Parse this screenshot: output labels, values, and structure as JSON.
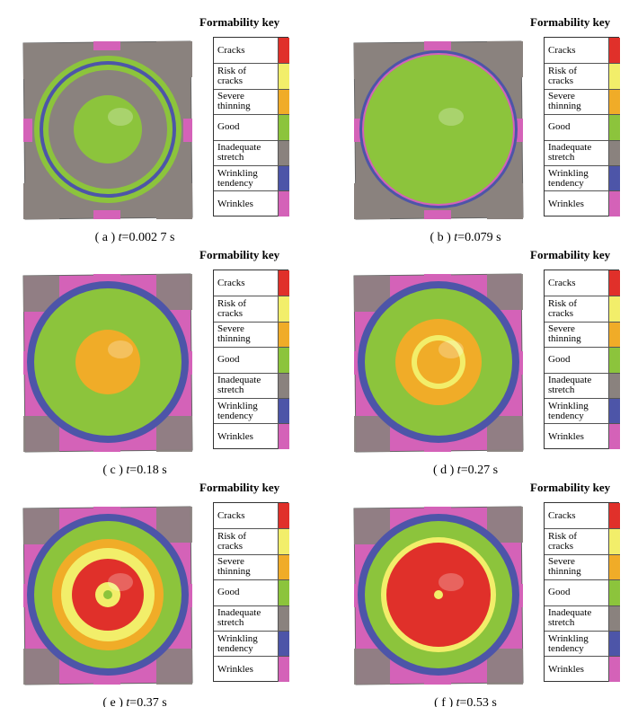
{
  "key": {
    "title": "Formability key",
    "items": [
      {
        "text": "Cracks",
        "color": "#e0302a"
      },
      {
        "text": "Risk of cracks",
        "color": "#f2ee6a"
      },
      {
        "text": "Severe thinning",
        "color": "#f0ac28"
      },
      {
        "text": "Good",
        "color": "#8cc43c"
      },
      {
        "text": "Inadequate stretch",
        "color": "#8a827e"
      },
      {
        "text": "Wrinkling tendency",
        "color": "#4d55a8"
      },
      {
        "text": "Wrinkles",
        "color": "#d462b8"
      }
    ]
  },
  "caption_variable": "t",
  "panels": [
    {
      "label": "( a )",
      "value": "=0.002 7 s"
    },
    {
      "label": "( b )",
      "value": "=0.079 s"
    },
    {
      "label": "( c )",
      "value": "=0.18 s"
    },
    {
      "label": "( d )",
      "value": "=0.27 s"
    },
    {
      "label": "( e )",
      "value": "=0.37 s"
    },
    {
      "label": "( f )",
      "value": "=0.53 s"
    }
  ]
}
